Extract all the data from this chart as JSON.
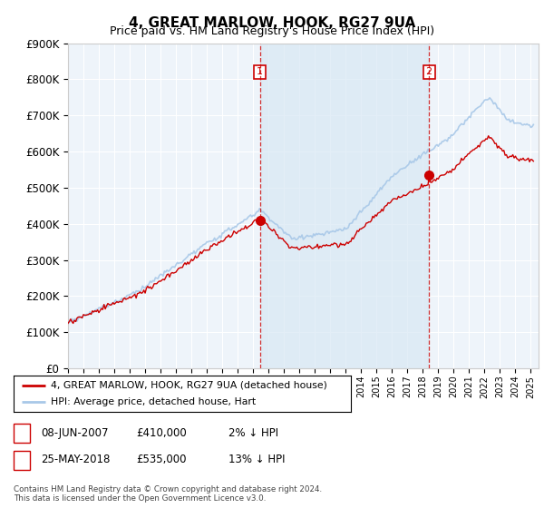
{
  "title": "4, GREAT MARLOW, HOOK, RG27 9UA",
  "subtitle": "Price paid vs. HM Land Registry's House Price Index (HPI)",
  "ylabel_ticks": [
    "£0",
    "£100K",
    "£200K",
    "£300K",
    "£400K",
    "£500K",
    "£600K",
    "£700K",
    "£800K",
    "£900K"
  ],
  "ylim": [
    0,
    900000
  ],
  "xlim_start": 1995.0,
  "xlim_end": 2025.5,
  "hpi_color": "#a8c8e8",
  "hpi_fill_color": "#d8e8f4",
  "price_color": "#cc0000",
  "sale1_x": 2007.44,
  "sale1_y": 410000,
  "sale2_x": 2018.4,
  "sale2_y": 535000,
  "legend_label1": "4, GREAT MARLOW, HOOK, RG27 9UA (detached house)",
  "legend_label2": "HPI: Average price, detached house, Hart",
  "annotation1_label": "1",
  "annotation1_date": "08-JUN-2007",
  "annotation1_price": "£410,000",
  "annotation1_hpi": "2% ↓ HPI",
  "annotation2_label": "2",
  "annotation2_date": "25-MAY-2018",
  "annotation2_price": "£535,000",
  "annotation2_hpi": "13% ↓ HPI",
  "footer": "Contains HM Land Registry data © Crown copyright and database right 2024.\nThis data is licensed under the Open Government Licence v3.0.",
  "background_color": "#e8f0f8",
  "background_color_light": "#eef4fa"
}
